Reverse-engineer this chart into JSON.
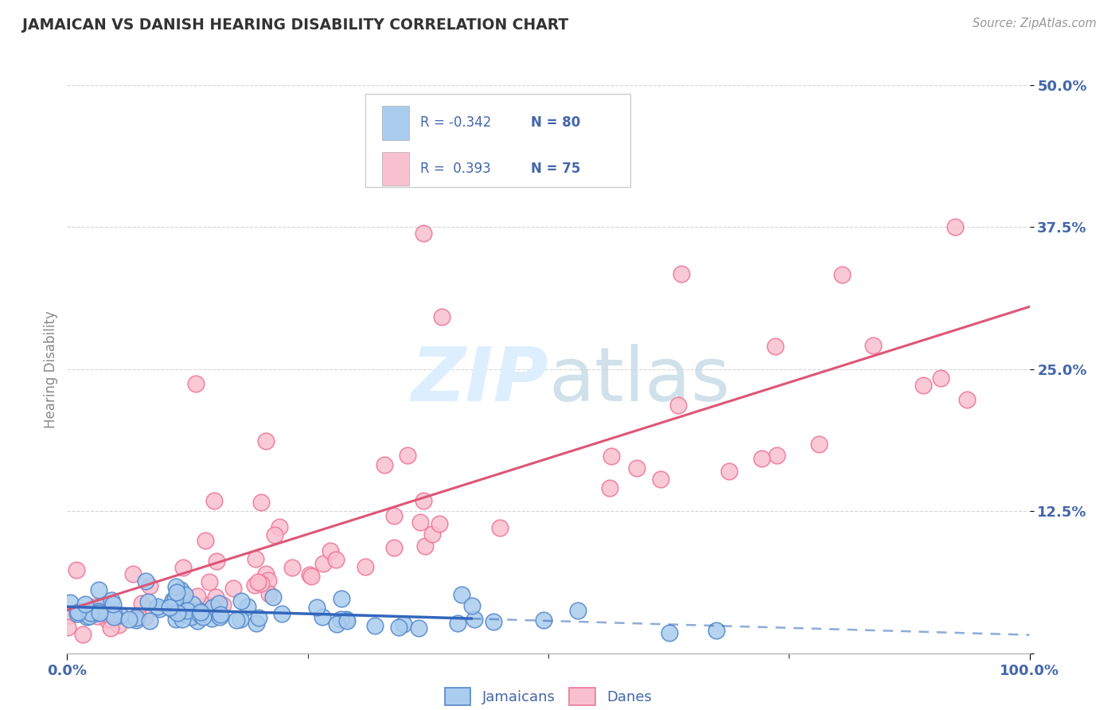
{
  "title": "JAMAICAN VS DANISH HEARING DISABILITY CORRELATION CHART",
  "source": "Source: ZipAtlas.com",
  "ylabel": "Hearing Disability",
  "xlim": [
    0.0,
    1.0
  ],
  "ylim": [
    0.0,
    0.5
  ],
  "yticks": [
    0.0,
    0.125,
    0.25,
    0.375,
    0.5
  ],
  "ytick_labels": [
    "",
    "12.5%",
    "25.0%",
    "37.5%",
    "50.0%"
  ],
  "xtick_labels": [
    "0.0%",
    "100.0%"
  ],
  "background_color": "#ffffff",
  "grid_color": "#cccccc",
  "legend_R_jamaican": "-0.342",
  "legend_N_jamaican": "80",
  "legend_R_danish": "0.393",
  "legend_N_danish": "75",
  "jamaican_fill": "#aaccee",
  "danish_fill": "#f9c0cf",
  "jamaican_edge": "#5588cc",
  "danish_edge": "#ee7799",
  "jamaican_line_color": "#3366bb",
  "danish_line_color": "#dd5577",
  "watermark_color": "#ddeeff",
  "title_color": "#333333",
  "tick_label_color": "#4466aa",
  "source_color": "#999999",
  "jamaican_seed": 12,
  "danish_seed": 77
}
